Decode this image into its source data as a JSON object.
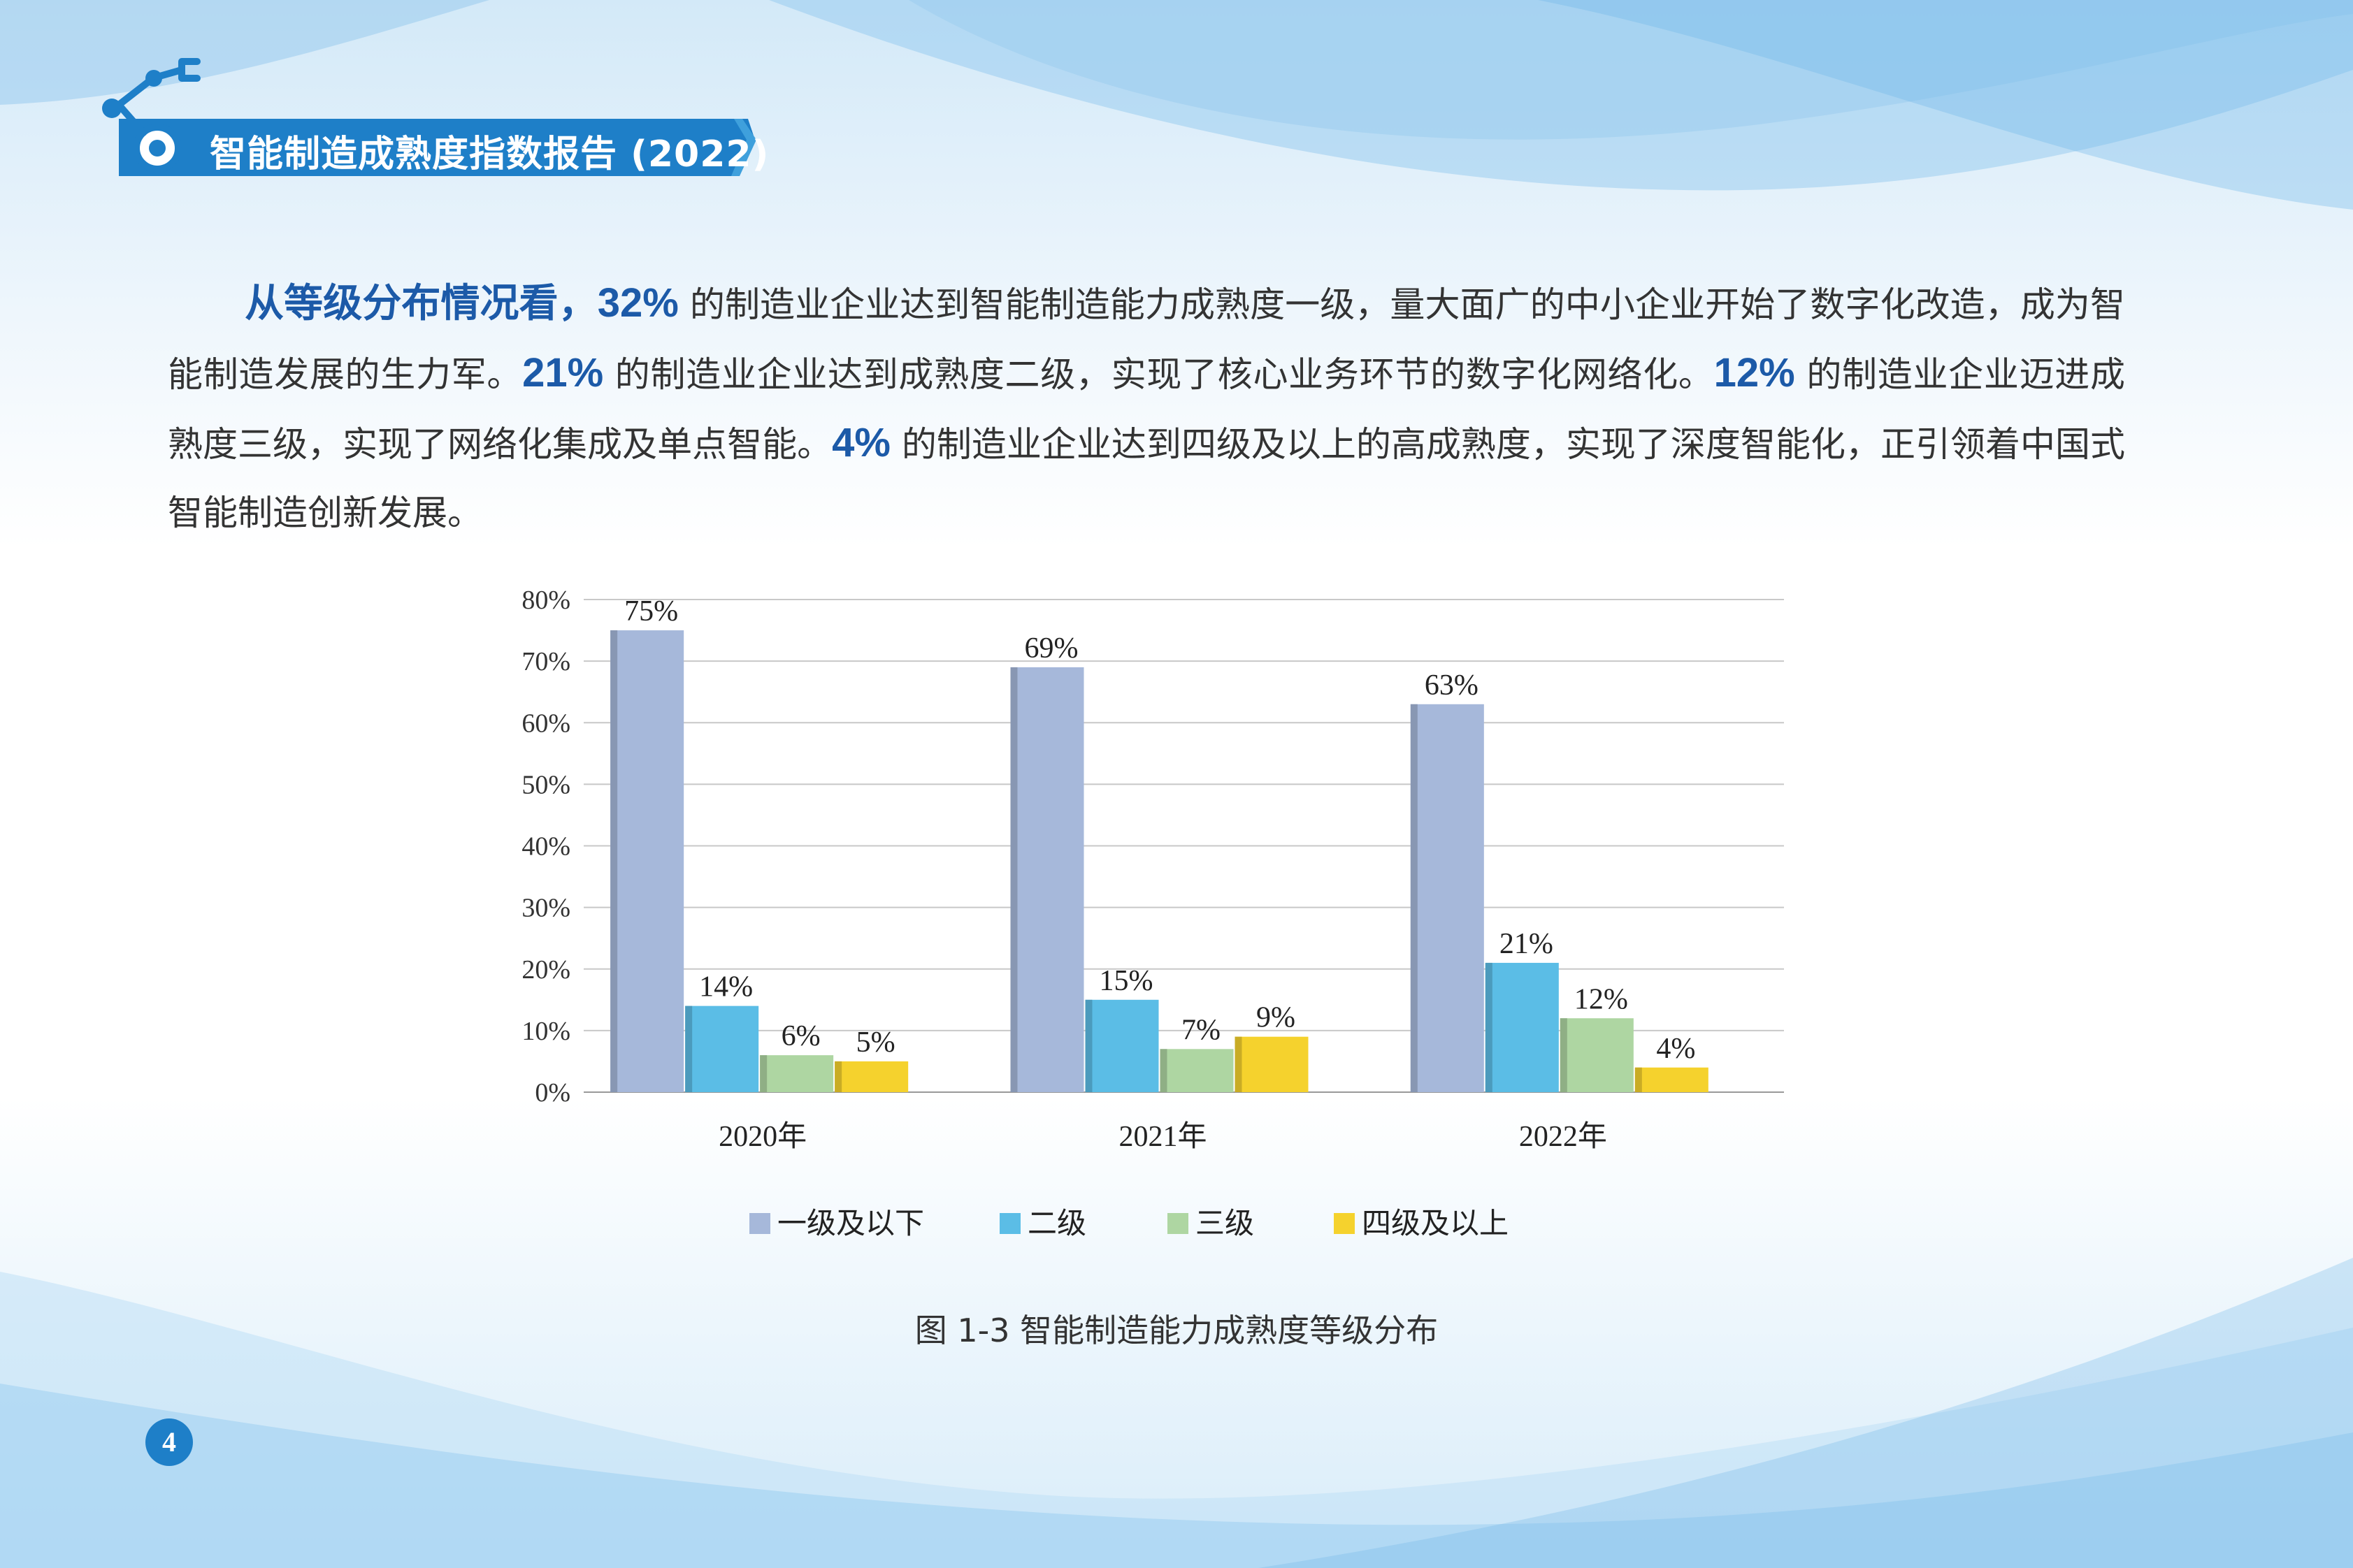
{
  "header": {
    "title": "智能制造成熟度指数报告 (2022)"
  },
  "paragraph": {
    "lead": "从等级分布情况看，",
    "p1": "32%",
    "t1": " 的制造业企业达到智能制造能力成熟度一级，量大面广的中小企业开始了数字化改造，成为智能制造发展的生力军。",
    "p2": "21%",
    "t2": " 的制造业企业达到成熟度二级，实现了核心业务环节的数字化网络化。",
    "p3": "12%",
    "t3": " 的制造业企业迈进成熟度三级，实现了网络化集成及单点智能。",
    "p4": "4%",
    "t4": " 的制造业企业达到四级及以上的高成熟度，实现了深度智能化，正引领着中国式智能制造创新发展。"
  },
  "chart_data": {
    "type": "bar",
    "categories": [
      "2020年",
      "2021年",
      "2022年"
    ],
    "series": [
      {
        "name": "一级及以下",
        "values": [
          75,
          69,
          63
        ],
        "labels": [
          "75%",
          "69%",
          "63%"
        ],
        "color": "#a6b8da"
      },
      {
        "name": "二级",
        "values": [
          14,
          15,
          21
        ],
        "labels": [
          "14%",
          "15%",
          "21%"
        ],
        "color": "#5bbde6"
      },
      {
        "name": "三级",
        "values": [
          6,
          7,
          12
        ],
        "labels": [
          "6%",
          "7%",
          "12%"
        ],
        "color": "#aed6a2"
      },
      {
        "name": "四级及以上",
        "values": [
          5,
          9,
          4
        ],
        "labels": [
          "5%",
          "9%",
          "4%"
        ],
        "color": "#f5d22d"
      }
    ],
    "yticks": [
      "0%",
      "10%",
      "20%",
      "30%",
      "40%",
      "50%",
      "60%",
      "70%",
      "80%"
    ],
    "ylim": [
      0,
      80
    ],
    "grid": true,
    "legend_position": "bottom"
  },
  "caption": "图 1-3  智能制造能力成熟度等级分布",
  "page_number": "4",
  "colors": {
    "accent": "#1c5aa8",
    "banner": "#1e7fc8",
    "sky": "#cfe6f6"
  }
}
